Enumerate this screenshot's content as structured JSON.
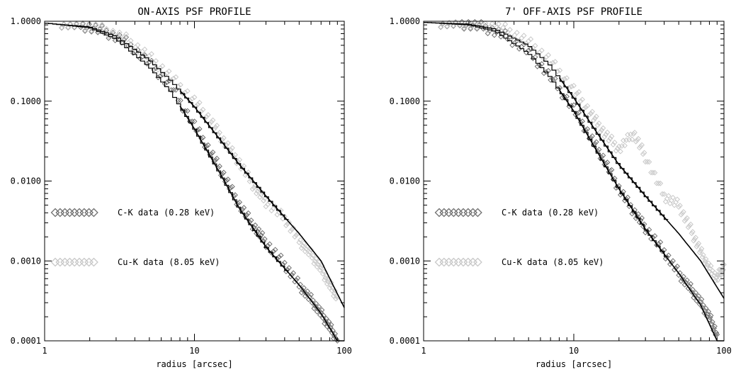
{
  "chart_data": [
    {
      "type": "line",
      "title": "ON-AXIS PSF PROFILE",
      "xlabel": "radius [arcsec]",
      "ylabel": "",
      "xscale": "log",
      "yscale": "log",
      "xlim": [
        1,
        100
      ],
      "ylim": [
        0.0001,
        1.0
      ],
      "x_ticks": [
        {
          "v": 1,
          "label": "1"
        },
        {
          "v": 10,
          "label": "10"
        },
        {
          "v": 100,
          "label": "100"
        }
      ],
      "y_ticks": [
        {
          "v": 1.0,
          "label": "1.0000"
        },
        {
          "v": 0.1,
          "label": "0.1000"
        },
        {
          "v": 0.01,
          "label": "0.0100"
        },
        {
          "v": 0.001,
          "label": "0.0010"
        },
        {
          "v": 0.0001,
          "label": "0.0001"
        }
      ],
      "grid": false,
      "legend_position": "left",
      "legend": [
        {
          "label": "C-K data  (0.28 keV)",
          "color": "#707070"
        },
        {
          "label": "Cu-K data (8.05 keV)",
          "color": "#c8c8c8"
        }
      ],
      "series": [
        {
          "name": "C-K data  (0.28 keV)",
          "color": "#707070",
          "model": {
            "x": [
              1,
              2,
              3,
              5,
              7,
              10,
              15,
              20,
              30,
              50,
              70,
              90
            ],
            "y": [
              0.95,
              0.83,
              0.6,
              0.27,
              0.13,
              0.045,
              0.012,
              0.0045,
              0.0015,
              0.0005,
              0.00022,
              0.0001
            ]
          },
          "data": {
            "x": [
              1.3,
              1.8,
              2.5,
              3.5,
              5,
              7,
              10,
              13,
              16,
              20,
              25,
              30,
              40,
              50,
              60,
              70,
              80,
              90
            ],
            "y": [
              0.95,
              0.88,
              0.75,
              0.55,
              0.3,
              0.15,
              0.05,
              0.022,
              0.011,
              0.005,
              0.0027,
              0.0017,
              0.0009,
              0.0005,
              0.00033,
              0.00022,
              0.00015,
              0.0001
            ]
          }
        },
        {
          "name": "Cu-K data (8.05 keV)",
          "color": "#c8c8c8",
          "model": {
            "x": [
              1,
              2,
              3,
              5,
              7,
              10,
              15,
              20,
              30,
              50,
              70,
              100
            ],
            "y": [
              0.95,
              0.85,
              0.65,
              0.33,
              0.18,
              0.085,
              0.032,
              0.016,
              0.0065,
              0.0022,
              0.001,
              0.00026
            ]
          },
          "data": {
            "x": [
              1.3,
              1.8,
              2.5,
              3.5,
              5,
              7,
              10,
              13,
              16,
              20,
              25,
              30,
              40,
              50,
              60,
              70,
              80,
              90
            ],
            "y": [
              0.96,
              0.9,
              0.78,
              0.6,
              0.36,
              0.2,
              0.1,
              0.055,
              0.03,
              0.017,
              0.0085,
              0.0055,
              0.0034,
              0.0018,
              0.0012,
              0.0008,
              0.0005,
              0.00035
            ]
          }
        }
      ]
    },
    {
      "type": "line",
      "title": "7' OFF-AXIS PSF PROFILE",
      "xlabel": "radius [arcsec]",
      "ylabel": "",
      "xscale": "log",
      "yscale": "log",
      "xlim": [
        1,
        100
      ],
      "ylim": [
        0.0001,
        1.0
      ],
      "x_ticks": [
        {
          "v": 1,
          "label": "1"
        },
        {
          "v": 10,
          "label": "10"
        },
        {
          "v": 100,
          "label": "100"
        }
      ],
      "y_ticks": [
        {
          "v": 1.0,
          "label": "1.0000"
        },
        {
          "v": 0.1,
          "label": "0.1000"
        },
        {
          "v": 0.01,
          "label": "0.0100"
        },
        {
          "v": 0.001,
          "label": "0.0010"
        },
        {
          "v": 0.0001,
          "label": "0.0001"
        }
      ],
      "grid": false,
      "legend_position": "left",
      "legend": [
        {
          "label": "C-K data  (0.28 keV)",
          "color": "#707070"
        },
        {
          "label": "Cu-K data (8.05 keV)",
          "color": "#c8c8c8"
        }
      ],
      "series": [
        {
          "name": "C-K data  (0.28 keV)",
          "color": "#707070",
          "model": {
            "x": [
              1,
              2,
              3,
              5,
              7,
              10,
              15,
              20,
              30,
              50,
              70,
              90
            ],
            "y": [
              0.97,
              0.9,
              0.75,
              0.4,
              0.2,
              0.075,
              0.02,
              0.008,
              0.0025,
              0.0007,
              0.00028,
              0.0001
            ]
          },
          "data": {
            "x": [
              1.3,
              1.8,
              2.5,
              3.5,
              5,
              7,
              10,
              13,
              16,
              20,
              25,
              30,
              40,
              50,
              60,
              70,
              80,
              90
            ],
            "y": [
              0.97,
              0.93,
              0.85,
              0.66,
              0.42,
              0.2,
              0.08,
              0.035,
              0.018,
              0.008,
              0.0042,
              0.0026,
              0.0013,
              0.0007,
              0.00045,
              0.0003,
              0.0002,
              0.00012
            ]
          }
        },
        {
          "name": "Cu-K data (8.05 keV)",
          "color": "#c8c8c8",
          "model": {
            "x": [
              1,
              2,
              3,
              5,
              7,
              10,
              15,
              20,
              30,
              50,
              70,
              100
            ],
            "y": [
              0.97,
              0.92,
              0.8,
              0.5,
              0.28,
              0.11,
              0.035,
              0.016,
              0.0065,
              0.0022,
              0.001,
              0.00034
            ]
          },
          "data": {
            "x": [
              1.3,
              1.8,
              2.5,
              3.5,
              5,
              7,
              10,
              13,
              16,
              20,
              25,
              30,
              40,
              50,
              60,
              70,
              80,
              90,
              100
            ],
            "y": [
              0.98,
              0.95,
              0.9,
              0.8,
              0.55,
              0.32,
              0.14,
              0.07,
              0.04,
              0.025,
              0.04,
              0.02,
              0.0065,
              0.005,
              0.0025,
              0.0013,
              0.0008,
              0.0006,
              0.0009
            ]
          }
        }
      ]
    }
  ]
}
